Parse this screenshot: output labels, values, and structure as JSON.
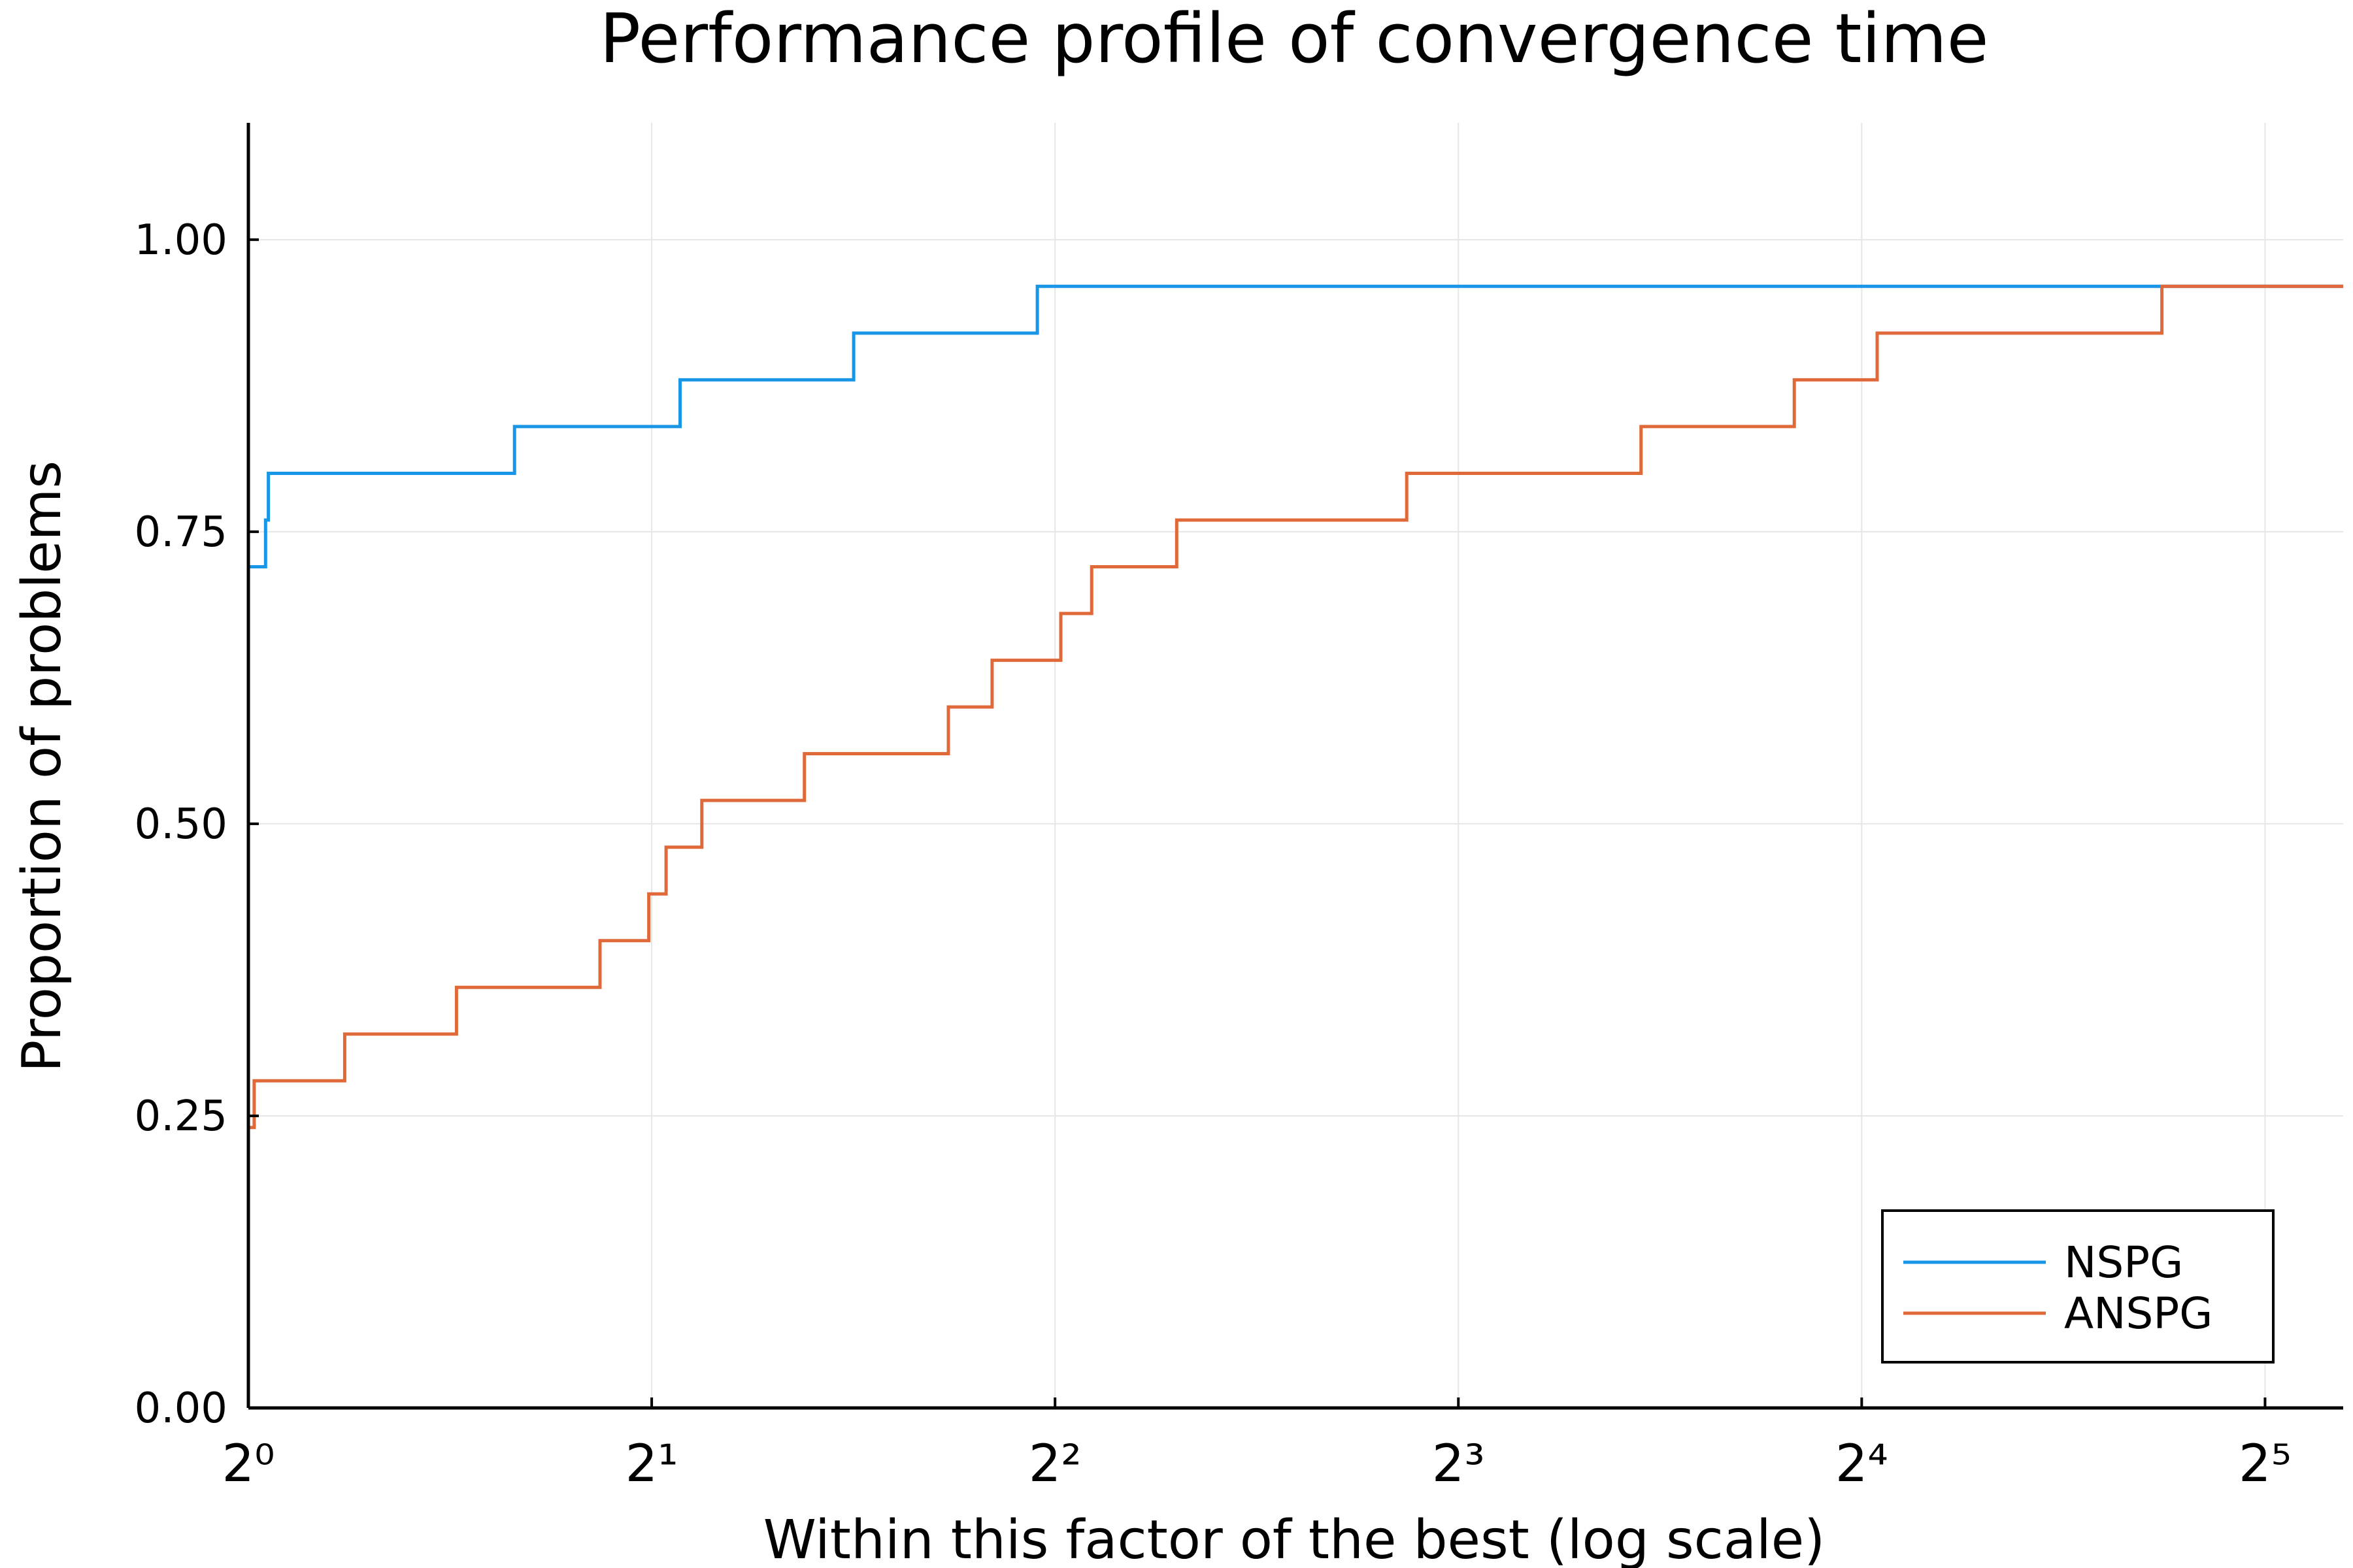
{
  "chart_data": {
    "type": "line",
    "step": true,
    "title": "Performance profile of convergence time",
    "xlabel": "Within this factor of the best (log scale)",
    "ylabel": "Proportion of problems",
    "x_scale": "log2",
    "xlim": [
      1,
      36.6
    ],
    "ylim": [
      0,
      1.1
    ],
    "x_ticks": [
      {
        "value": 1,
        "label": "2⁰"
      },
      {
        "value": 2,
        "label": "2¹"
      },
      {
        "value": 4,
        "label": "2²"
      },
      {
        "value": 8,
        "label": "2³"
      },
      {
        "value": 16,
        "label": "2⁴"
      },
      {
        "value": 32,
        "label": "2⁵"
      }
    ],
    "y_ticks": [
      {
        "value": 0,
        "label": "0.00"
      },
      {
        "value": 0.25,
        "label": "0.25"
      },
      {
        "value": 0.5,
        "label": "0.50"
      },
      {
        "value": 0.75,
        "label": "0.75"
      },
      {
        "value": 1,
        "label": "1.00"
      }
    ],
    "grid": true,
    "legend_position": "bottom-right",
    "series": [
      {
        "name": "NSPG",
        "color": "#1a96e6",
        "points": [
          [
            1.0,
            0.72
          ],
          [
            1.03,
            0.72
          ],
          [
            1.03,
            0.76
          ],
          [
            1.035,
            0.76
          ],
          [
            1.035,
            0.8
          ],
          [
            1.58,
            0.8
          ],
          [
            1.58,
            0.84
          ],
          [
            2.1,
            0.84
          ],
          [
            2.1,
            0.88
          ],
          [
            2.83,
            0.88
          ],
          [
            2.83,
            0.92
          ],
          [
            3.88,
            0.92
          ],
          [
            3.88,
            0.96
          ],
          [
            36.6,
            0.96
          ]
        ]
      },
      {
        "name": "ANSPG",
        "color": "#e0693a",
        "points": [
          [
            1.0,
            0.24
          ],
          [
            1.01,
            0.24
          ],
          [
            1.01,
            0.28
          ],
          [
            1.18,
            0.28
          ],
          [
            1.18,
            0.32
          ],
          [
            1.43,
            0.32
          ],
          [
            1.43,
            0.36
          ],
          [
            1.83,
            0.36
          ],
          [
            1.83,
            0.4
          ],
          [
            1.99,
            0.4
          ],
          [
            1.99,
            0.44
          ],
          [
            2.05,
            0.44
          ],
          [
            2.05,
            0.48
          ],
          [
            2.18,
            0.48
          ],
          [
            2.18,
            0.52
          ],
          [
            2.6,
            0.52
          ],
          [
            2.6,
            0.56
          ],
          [
            3.33,
            0.56
          ],
          [
            3.33,
            0.6
          ],
          [
            3.59,
            0.6
          ],
          [
            3.59,
            0.64
          ],
          [
            4.04,
            0.64
          ],
          [
            4.04,
            0.68
          ],
          [
            4.26,
            0.68
          ],
          [
            4.26,
            0.72
          ],
          [
            4.93,
            0.72
          ],
          [
            4.93,
            0.76
          ],
          [
            7.32,
            0.76
          ],
          [
            7.32,
            0.8
          ],
          [
            10.95,
            0.8
          ],
          [
            10.95,
            0.84
          ],
          [
            14.25,
            0.84
          ],
          [
            14.25,
            0.88
          ],
          [
            16.43,
            0.88
          ],
          [
            16.43,
            0.92
          ],
          [
            26.8,
            0.92
          ],
          [
            26.8,
            0.96
          ],
          [
            36.6,
            0.96
          ]
        ]
      }
    ]
  }
}
